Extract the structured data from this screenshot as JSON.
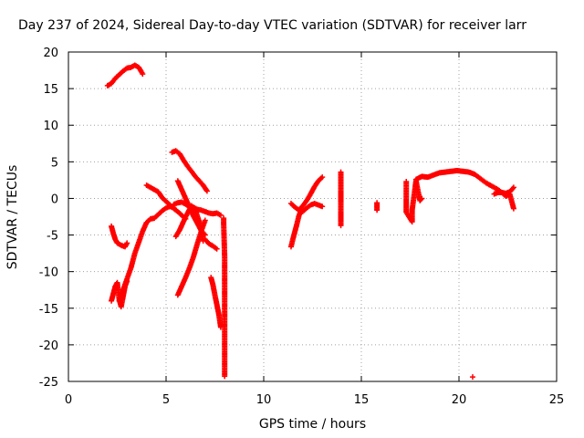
{
  "chart_data": {
    "type": "scatter",
    "title": "Day 237 of 2024, Sidereal Day-to-day VTEC variation (SDTVAR) for receiver larr",
    "xlabel": "GPS time / hours",
    "ylabel": "SDTVAR / TECUs",
    "xlim": [
      0,
      25
    ],
    "ylim": [
      -25,
      20
    ],
    "xticks": [
      0,
      5,
      10,
      15,
      20,
      25
    ],
    "yticks": [
      -25,
      -20,
      -15,
      -10,
      -5,
      0,
      5,
      10,
      15,
      20
    ],
    "grid": true,
    "marker": "+",
    "color": "#ff0000",
    "series": [
      {
        "name": "arc-top-left",
        "x": [
          2.0,
          2.2,
          2.4,
          2.6,
          2.8,
          3.0,
          3.2,
          3.4,
          3.6,
          3.8
        ],
        "y": [
          15.4,
          15.7,
          16.4,
          16.9,
          17.4,
          17.8,
          17.9,
          18.2,
          17.9,
          17.0
        ]
      },
      {
        "name": "arc-left-upper",
        "x": [
          2.2,
          2.3,
          2.4,
          2.5,
          2.7,
          2.9,
          3.0
        ],
        "y": [
          -3.8,
          -4.8,
          -5.6,
          -6.1,
          -6.4,
          -6.6,
          -6.1
        ]
      },
      {
        "name": "arc-left-lower",
        "x": [
          2.2,
          2.3,
          2.4,
          2.5,
          2.6,
          2.7,
          2.9,
          3.0
        ],
        "y": [
          -14.0,
          -13.0,
          -12.0,
          -11.5,
          -13.8,
          -14.8,
          -12.0,
          -11.3
        ]
      },
      {
        "name": "arc-rise-1",
        "x": [
          2.6,
          2.8,
          3.0,
          3.2,
          3.4,
          3.6,
          3.8,
          4.0,
          4.2,
          4.4,
          4.6,
          4.8,
          5.0,
          5.2,
          5.4
        ],
        "y": [
          -14.0,
          -12.5,
          -11.0,
          -9.5,
          -7.5,
          -6.0,
          -4.5,
          -3.3,
          -2.8,
          -2.7,
          -2.2,
          -1.7,
          -1.3,
          -1.1,
          -1.3
        ]
      },
      {
        "name": "arc-mid-left",
        "x": [
          4.0,
          4.2,
          4.4,
          4.6,
          4.8,
          5.0,
          5.2,
          5.4,
          5.6,
          5.8,
          6.0
        ],
        "y": [
          1.8,
          1.5,
          1.2,
          0.9,
          0.1,
          -0.4,
          -0.9,
          -1.4,
          -1.8,
          -2.3,
          -2.8
        ]
      },
      {
        "name": "arc-mid-right",
        "x": [
          5.4,
          5.6,
          5.8,
          6.0,
          6.2,
          6.4,
          6.6,
          6.8,
          7.0,
          7.2,
          7.4,
          7.6,
          7.8
        ],
        "y": [
          -0.8,
          -0.6,
          -0.5,
          -0.8,
          -1.1,
          -1.2,
          -1.5,
          -1.6,
          -1.8,
          -2.0,
          -2.1,
          -2.0,
          -2.3
        ]
      },
      {
        "name": "arc-descend-top",
        "x": [
          5.3,
          5.5,
          5.7,
          5.9,
          6.1,
          6.3,
          6.5,
          6.7,
          6.9,
          7.1
        ],
        "y": [
          6.3,
          6.5,
          6.1,
          5.2,
          4.4,
          3.7,
          3.0,
          2.4,
          1.8,
          1.0
        ]
      },
      {
        "name": "arc-descend-mid",
        "x": [
          5.6,
          5.8,
          6.0,
          6.2,
          6.4,
          6.6,
          6.8,
          7.0
        ],
        "y": [
          2.4,
          1.2,
          0.0,
          -1.2,
          -2.4,
          -3.4,
          -4.4,
          -5.0
        ]
      },
      {
        "name": "arc-cross",
        "x": [
          5.5,
          5.7,
          5.9,
          6.1,
          6.3,
          6.5,
          6.7,
          6.9
        ],
        "y": [
          -5.2,
          -4.3,
          -3.1,
          -2.0,
          -1.0,
          -1.6,
          -3.2,
          -5.8
        ]
      },
      {
        "name": "arc-rise-2",
        "x": [
          5.6,
          5.8,
          6.0,
          6.2,
          6.4,
          6.6,
          6.8,
          7.0
        ],
        "y": [
          -13.2,
          -12.0,
          -10.8,
          -9.5,
          -8.0,
          -6.2,
          -4.5,
          -3.0
        ]
      },
      {
        "name": "arc-small",
        "x": [
          7.0,
          7.2,
          7.4,
          7.6
        ],
        "y": [
          -5.6,
          -6.2,
          -6.5,
          -6.9
        ]
      },
      {
        "name": "arc-drop",
        "x": [
          7.3,
          7.4,
          7.5,
          7.6,
          7.7,
          7.8
        ],
        "y": [
          -10.8,
          -11.8,
          -13.2,
          -14.5,
          -15.8,
          -17.6
        ]
      },
      {
        "name": "pts-8h",
        "x": [
          7.95,
          7.95,
          8.0,
          8.0,
          8.0
        ],
        "y": [
          -2.7,
          -3.4,
          -8.1,
          -14.1,
          -24.3
        ]
      },
      {
        "name": "arc-11h",
        "x": [
          11.4,
          11.5,
          11.6,
          11.7,
          11.8,
          11.9,
          12.0,
          12.2,
          12.4,
          12.6,
          12.8,
          13.0
        ],
        "y": [
          -6.6,
          -5.5,
          -4.5,
          -3.5,
          -2.4,
          -1.7,
          -1.8,
          -1.3,
          -0.9,
          -0.7,
          -0.9,
          -1.1
        ]
      },
      {
        "name": "arc-12h",
        "x": [
          11.4,
          11.6,
          11.8,
          12.0,
          12.2,
          12.4,
          12.6,
          12.8,
          13.0
        ],
        "y": [
          -0.7,
          -1.2,
          -1.6,
          -1.0,
          -0.3,
          0.6,
          1.6,
          2.4,
          2.9
        ]
      },
      {
        "name": "pts-14h",
        "x": [
          13.95,
          13.95,
          13.95,
          13.95
        ],
        "y": [
          3.6,
          2.1,
          -1.3,
          -3.7
        ]
      },
      {
        "name": "pts-16h",
        "x": [
          15.8,
          15.8
        ],
        "y": [
          -0.6,
          -1.6
        ]
      },
      {
        "name": "pts-17-18h",
        "x": [
          17.3,
          17.3,
          17.3,
          17.6,
          17.6,
          17.8,
          18.0,
          18.1
        ],
        "y": [
          2.3,
          -1.1,
          -1.9,
          -3.2,
          -1.6,
          2.4,
          -0.3,
          0.0
        ]
      },
      {
        "name": "arc-20h",
        "x": [
          17.8,
          18.1,
          18.4,
          18.7,
          19.0,
          19.3,
          19.6,
          19.9,
          20.2,
          20.5,
          20.8,
          21.0,
          21.2,
          21.4,
          21.6,
          21.8,
          22.0,
          22.2,
          22.4,
          22.6,
          22.8
        ],
        "y": [
          2.6,
          3.0,
          2.9,
          3.2,
          3.5,
          3.6,
          3.7,
          3.8,
          3.7,
          3.6,
          3.3,
          2.9,
          2.5,
          2.1,
          1.8,
          1.5,
          1.2,
          0.8,
          0.7,
          0.9,
          1.5
        ]
      },
      {
        "name": "arc-22h",
        "x": [
          21.8,
          22.0,
          22.2,
          22.4,
          22.6,
          22.8
        ],
        "y": [
          0.6,
          0.8,
          0.8,
          0.3,
          0.6,
          -1.4
        ]
      },
      {
        "name": "pt-20.7h",
        "x": [
          20.7
        ],
        "y": [
          -24.4
        ]
      }
    ]
  }
}
